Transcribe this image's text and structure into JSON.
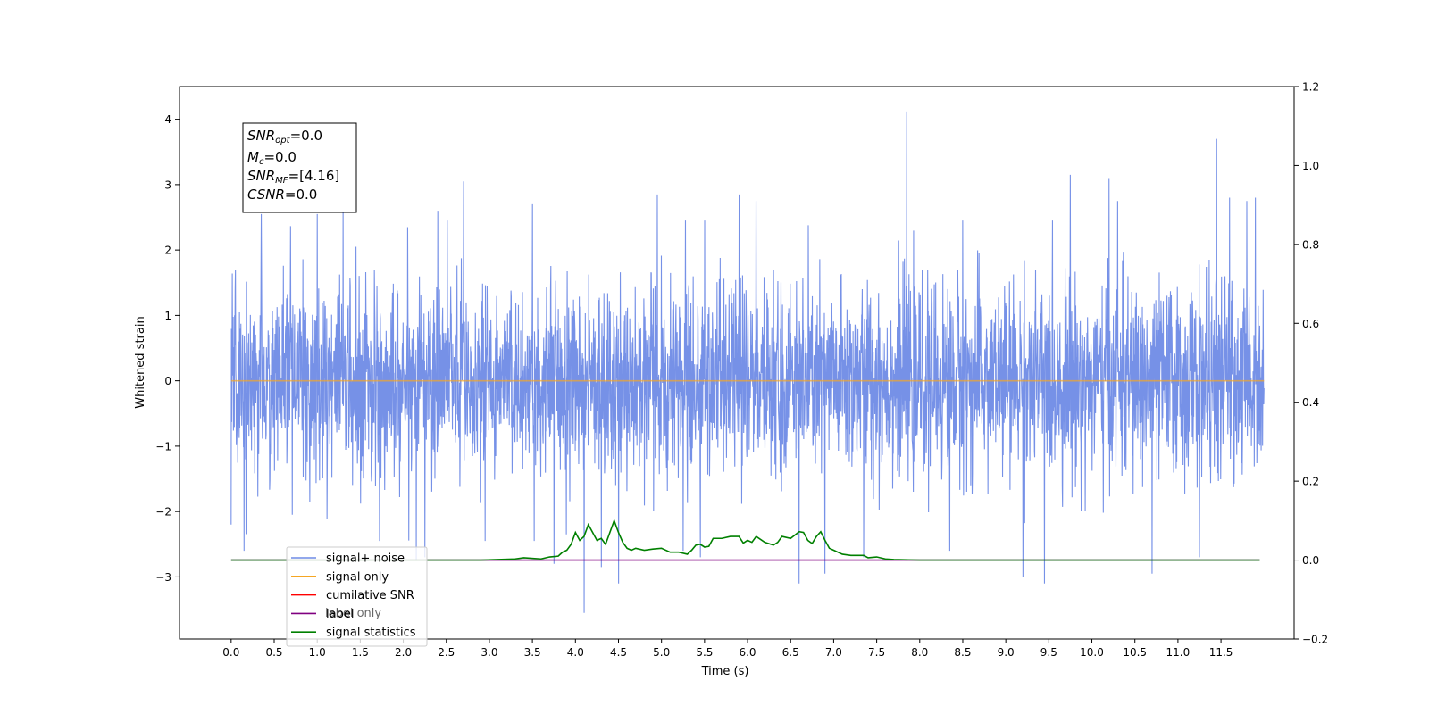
{
  "chart_data": {
    "type": "line",
    "title": "",
    "xlabel": "Time (s)",
    "ylabel_left": "Whitened strain",
    "ylabel_right": "",
    "xlim": [
      -0.6,
      12.35
    ],
    "ylim_left": [
      -3.95,
      4.5
    ],
    "ylim_right": [
      -0.2,
      1.2
    ],
    "x_ticks": [
      0.0,
      0.5,
      1.0,
      1.5,
      2.0,
      2.5,
      3.0,
      3.5,
      4.0,
      4.5,
      5.0,
      5.5,
      6.0,
      6.5,
      7.0,
      7.5,
      8.0,
      8.5,
      9.0,
      9.5,
      10.0,
      10.5,
      11.0,
      11.5
    ],
    "x_tick_labels": [
      "0.0",
      "0.5",
      "1.0",
      "1.5",
      "2.0",
      "2.5",
      "3.0",
      "3.5",
      "4.0",
      "4.5",
      "5.0",
      "5.5",
      "6.0",
      "6.5",
      "7.0",
      "7.5",
      "8.0",
      "8.5",
      "9.0",
      "9.5",
      "10.0",
      "10.5",
      "11.0",
      "11.5"
    ],
    "y_left_ticks": [
      -3,
      -2,
      -1,
      0,
      1,
      2,
      3,
      4
    ],
    "y_left_tick_labels": [
      "−3",
      "−2",
      "−1",
      "0",
      "1",
      "2",
      "3",
      "4"
    ],
    "y_right_ticks": [
      -0.2,
      0.0,
      0.2,
      0.4,
      0.6,
      0.8,
      1.0,
      1.2
    ],
    "y_right_tick_labels": [
      "−0.2",
      "0.0",
      "0.2",
      "0.4",
      "0.6",
      "0.8",
      "1.0",
      "1.2"
    ],
    "grid": false,
    "legend_position": "lower-left",
    "series": [
      {
        "name": "signal+ noise",
        "axis": "left",
        "color": "#6f8be6",
        "x_range": [
          0.0,
          12.0
        ],
        "noise_std": 0.72,
        "spikes": [
          [
            0.0,
            -2.2
          ],
          [
            0.05,
            1.7
          ],
          [
            0.15,
            -2.6
          ],
          [
            0.35,
            2.55
          ],
          [
            1.0,
            2.55
          ],
          [
            1.3,
            2.6
          ],
          [
            1.45,
            2.05
          ],
          [
            2.05,
            2.35
          ],
          [
            2.15,
            -2.75
          ],
          [
            2.25,
            -2.7
          ],
          [
            2.4,
            2.6
          ],
          [
            2.7,
            3.05
          ],
          [
            2.95,
            -2.45
          ],
          [
            3.5,
            2.7
          ],
          [
            3.75,
            -2.8
          ],
          [
            4.1,
            -3.55
          ],
          [
            4.3,
            -2.85
          ],
          [
            4.5,
            -3.1
          ],
          [
            4.95,
            2.85
          ],
          [
            5.25,
            -2.6
          ],
          [
            5.45,
            -2.7
          ],
          [
            5.5,
            2.45
          ],
          [
            5.9,
            2.85
          ],
          [
            6.1,
            2.75
          ],
          [
            6.6,
            -3.1
          ],
          [
            6.9,
            -2.95
          ],
          [
            7.35,
            -2.7
          ],
          [
            7.85,
            4.12
          ],
          [
            8.35,
            -2.6
          ],
          [
            8.5,
            2.45
          ],
          [
            9.2,
            -3.0
          ],
          [
            9.45,
            -3.1
          ],
          [
            9.75,
            3.15
          ],
          [
            10.2,
            3.1
          ],
          [
            10.3,
            2.75
          ],
          [
            10.7,
            -2.95
          ],
          [
            11.25,
            -2.7
          ],
          [
            11.45,
            3.7
          ],
          [
            11.6,
            2.8
          ],
          [
            11.8,
            2.75
          ],
          [
            11.9,
            2.8
          ]
        ]
      },
      {
        "name": "signal only",
        "axis": "left",
        "color": "#f5a623",
        "x": [
          0.0,
          12.0
        ],
        "y": [
          0.0,
          0.0
        ]
      },
      {
        "name": "cumilative SNR",
        "axis": "right",
        "color": "#ff0000",
        "x": [],
        "y": []
      },
      {
        "name": "label",
        "axis": "right",
        "color": "#800080",
        "x": [
          0.0,
          11.95
        ],
        "y": [
          0.0,
          0.0
        ]
      },
      {
        "name": "signal statistics",
        "axis": "right",
        "color": "#008000",
        "x": [
          0.0,
          2.9,
          3.3,
          3.4,
          3.6,
          3.7,
          3.8,
          3.85,
          3.9,
          3.95,
          4.0,
          4.05,
          4.1,
          4.15,
          4.2,
          4.25,
          4.3,
          4.35,
          4.4,
          4.45,
          4.5,
          4.55,
          4.6,
          4.65,
          4.7,
          4.8,
          4.9,
          5.0,
          5.1,
          5.2,
          5.3,
          5.35,
          5.4,
          5.45,
          5.5,
          5.55,
          5.6,
          5.7,
          5.8,
          5.9,
          5.95,
          6.0,
          6.05,
          6.1,
          6.2,
          6.3,
          6.35,
          6.4,
          6.5,
          6.6,
          6.65,
          6.7,
          6.75,
          6.8,
          6.85,
          6.9,
          6.95,
          7.0,
          7.1,
          7.2,
          7.3,
          7.35,
          7.4,
          7.5,
          7.6,
          7.7,
          8.0,
          11.95
        ],
        "y": [
          0.0,
          0.0,
          0.003,
          0.006,
          0.003,
          0.008,
          0.01,
          0.02,
          0.025,
          0.04,
          0.07,
          0.05,
          0.06,
          0.09,
          0.07,
          0.05,
          0.055,
          0.04,
          0.07,
          0.1,
          0.07,
          0.045,
          0.03,
          0.025,
          0.03,
          0.025,
          0.028,
          0.03,
          0.02,
          0.02,
          0.015,
          0.025,
          0.038,
          0.04,
          0.033,
          0.035,
          0.055,
          0.055,
          0.06,
          0.06,
          0.043,
          0.05,
          0.045,
          0.06,
          0.045,
          0.038,
          0.045,
          0.06,
          0.055,
          0.072,
          0.07,
          0.05,
          0.042,
          0.06,
          0.072,
          0.05,
          0.03,
          0.025,
          0.015,
          0.012,
          0.012,
          0.012,
          0.006,
          0.008,
          0.003,
          0.0015,
          0.0,
          0.0
        ]
      }
    ],
    "annotation": {
      "lines": [
        {
          "base": "SNR",
          "sub": "opt",
          "rest": "=0.0"
        },
        {
          "base": "M",
          "sub": "c",
          "rest": "=0.0"
        },
        {
          "base": "SNR",
          "sub": "MF",
          "rest": "=[4.16]"
        },
        {
          "base": "CSNR",
          "sub": "",
          "rest": "=0.0"
        }
      ]
    },
    "legend_ghost_text": [
      "label only"
    ]
  }
}
